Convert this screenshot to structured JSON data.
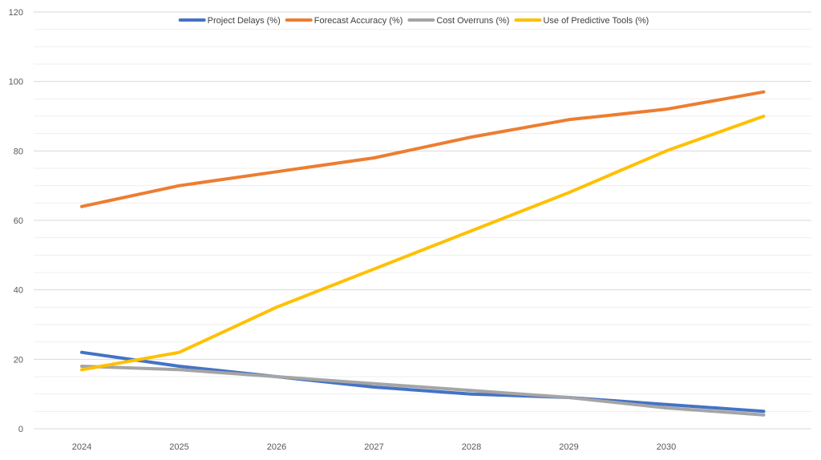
{
  "chart_data": {
    "type": "line",
    "categories": [
      "2024",
      "2025",
      "2026",
      "2027",
      "2028",
      "2029",
      "2030",
      ""
    ],
    "y_ticks": [
      0,
      20,
      40,
      60,
      80,
      100,
      120
    ],
    "ylim": [
      0,
      120
    ],
    "grid": true,
    "legend": "top",
    "series": [
      {
        "name": "Project Delays (%)",
        "color": "#4472C4",
        "values": [
          22,
          18,
          15,
          12,
          10,
          9,
          7,
          5
        ]
      },
      {
        "name": "Forecast Accuracy (%)",
        "color": "#ED7D31",
        "values": [
          64,
          70,
          74,
          78,
          84,
          89,
          92,
          97
        ]
      },
      {
        "name": "Cost Overruns (%)",
        "color": "#A5A5A5",
        "values": [
          18,
          17,
          15,
          13,
          11,
          9,
          6,
          4
        ]
      },
      {
        "name": "Use of Predictive Tools (%)",
        "color": "#FFC000",
        "values": [
          17,
          22,
          35,
          46,
          57,
          68,
          80,
          90
        ]
      }
    ]
  }
}
